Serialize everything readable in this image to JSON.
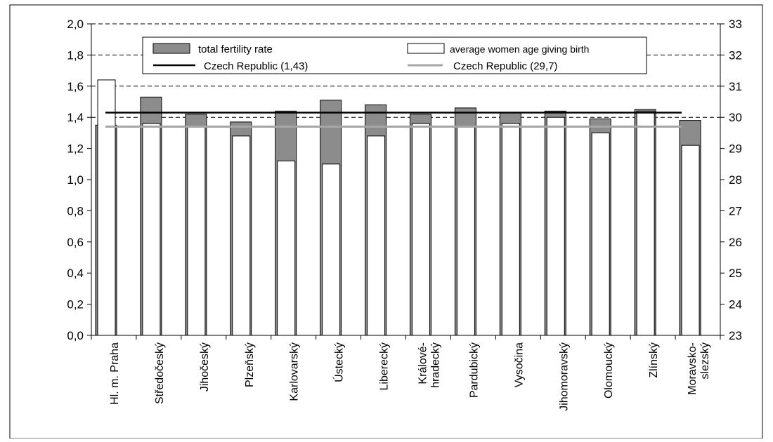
{
  "chart_data": {
    "type": "bar",
    "categories": [
      "Hl. m. Praha",
      "Středočeský",
      "Jihočeský",
      "Plzeňský",
      "Karlovarský",
      "Ústecký",
      "Liberecký",
      "Králové-hradecký",
      "Pardubický",
      "Vysočina",
      "Jihomoravský",
      "Olomoucký",
      "Zlínský",
      "Moravsko-slezský"
    ],
    "category_lines": [
      [
        "Hl. m. Praha"
      ],
      [
        "Středočeský"
      ],
      [
        "Jihočeský"
      ],
      [
        "Plzeňský"
      ],
      [
        "Karlovarský"
      ],
      [
        "Ústecký"
      ],
      [
        "Liberecký"
      ],
      [
        "Králové-",
        "hradecký"
      ],
      [
        "Pardubický"
      ],
      [
        "Vysočina"
      ],
      [
        "Jihomoravský"
      ],
      [
        "Olomoucký"
      ],
      [
        "Zlínský"
      ],
      [
        "Moravsko-",
        "slezský"
      ]
    ],
    "series": [
      {
        "name": "total fertility rate",
        "axis": "left",
        "color": "#8c8c8c",
        "values": [
          1.35,
          1.53,
          1.42,
          1.37,
          1.44,
          1.51,
          1.48,
          1.42,
          1.46,
          1.43,
          1.44,
          1.39,
          1.45,
          1.38
        ]
      },
      {
        "name": "average women age giving birth",
        "axis": "right",
        "color": "#ffffff",
        "values": [
          31.2,
          29.8,
          29.7,
          29.4,
          28.6,
          28.5,
          29.4,
          29.8,
          29.7,
          29.8,
          30.0,
          29.5,
          30.2,
          29.1
        ]
      }
    ],
    "reference_lines": [
      {
        "name": "Czech Republic (1,43)",
        "value": 1.43,
        "axis": "left",
        "color": "#000000"
      },
      {
        "name": "Czech Republic (29,7)",
        "value": 29.7,
        "axis": "right",
        "color": "#a6a6a6"
      }
    ],
    "y_left": {
      "ylim": [
        0,
        2.0
      ],
      "ticks": [
        0,
        0.2,
        0.4,
        0.6,
        0.8,
        1.0,
        1.2,
        1.4,
        1.6,
        1.8,
        2.0
      ],
      "tick_labels": [
        "0,0",
        "0,2",
        "0,4",
        "0,6",
        "0,8",
        "1,0",
        "1,2",
        "1,4",
        "1,6",
        "1,8",
        "2,0"
      ]
    },
    "y_right": {
      "ylim": [
        23,
        33
      ],
      "ticks": [
        23,
        24,
        25,
        26,
        27,
        28,
        29,
        30,
        31,
        32,
        33
      ],
      "tick_labels": [
        "23",
        "24",
        "25",
        "26",
        "27",
        "28",
        "29",
        "30",
        "31",
        "32",
        "33"
      ]
    },
    "grid": "dashed horizontal at 1.8, 1.6, 1.4",
    "legend": {
      "placement": "top",
      "entries": [
        "total fertility rate",
        "average women age giving birth",
        "Czech Republic (1,43)",
        "Czech Republic (29,7)"
      ]
    },
    "title": "",
    "xlabel": "",
    "ylabel": ""
  }
}
